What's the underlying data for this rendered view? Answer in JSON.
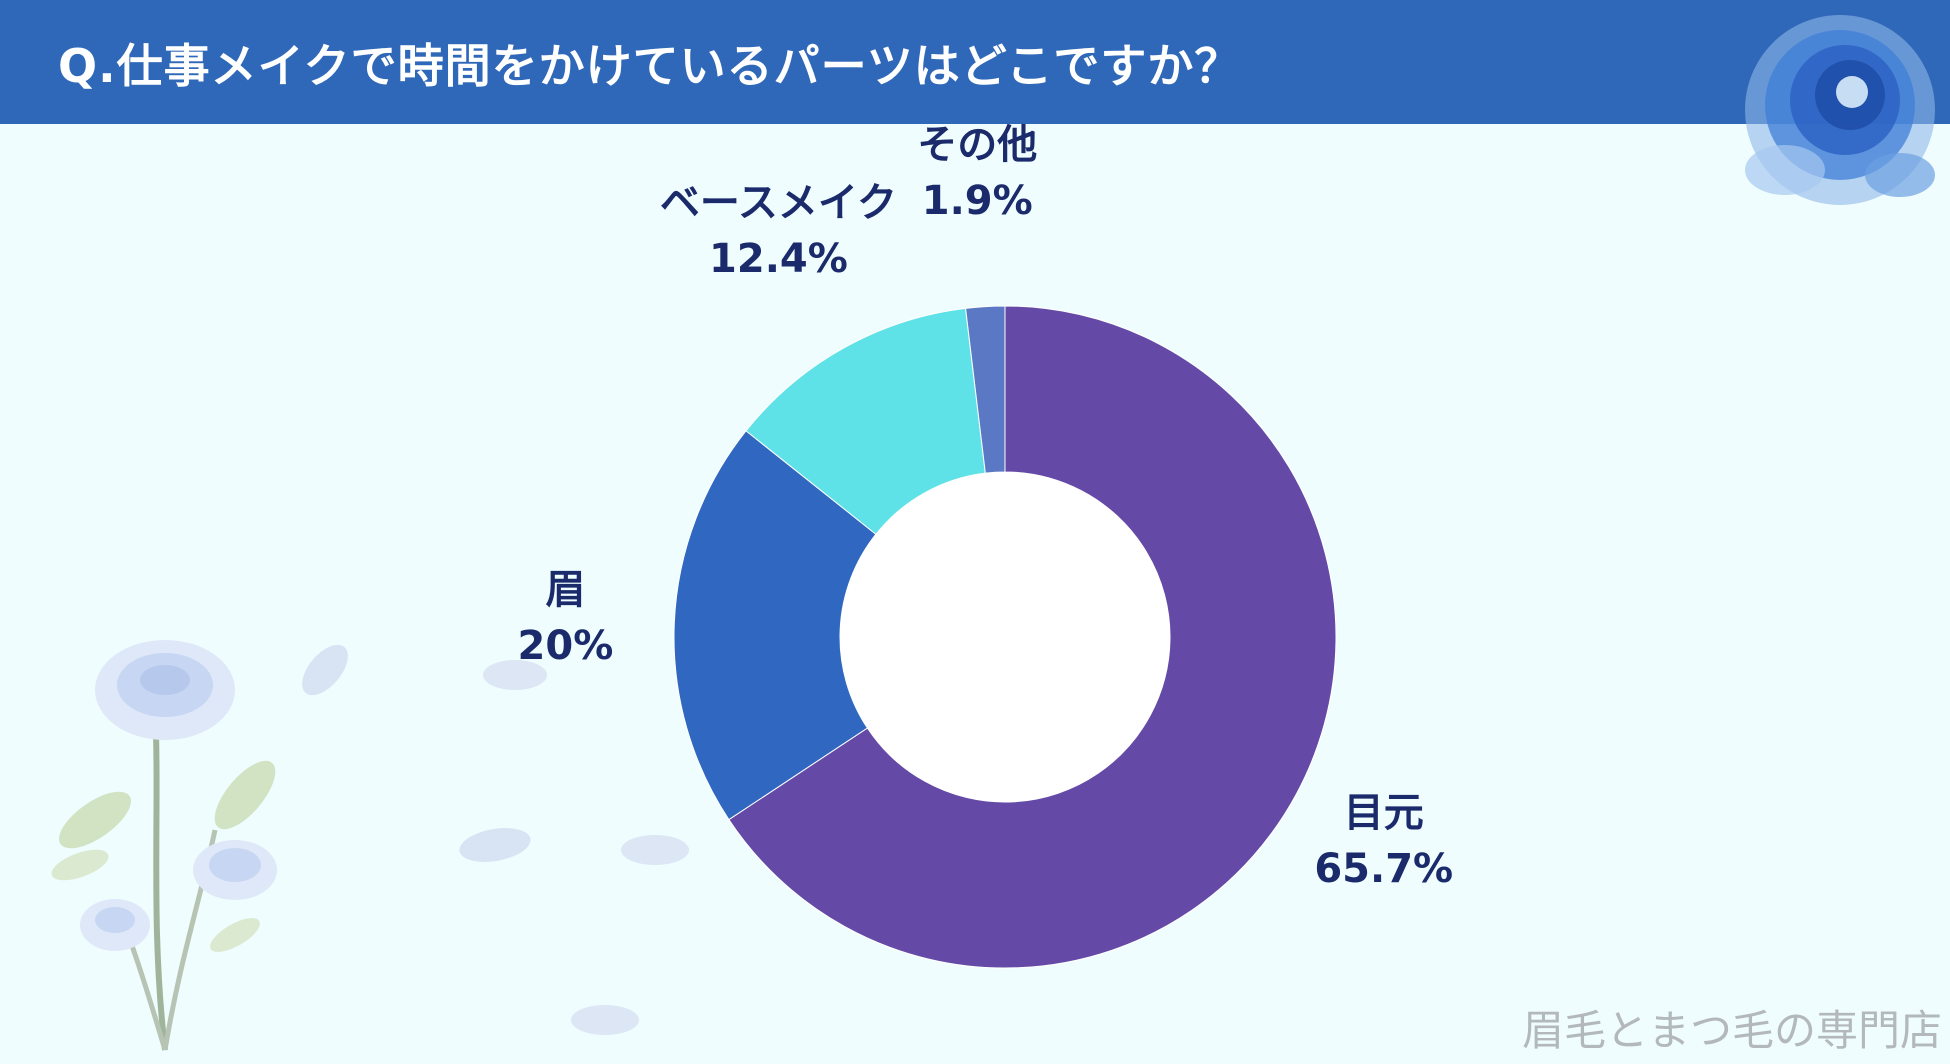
{
  "header": {
    "title": "Q.仕事メイクで時間をかけているパーツはどこですか？"
  },
  "chart_data": {
    "type": "pie",
    "donut": true,
    "categories": [
      "目元",
      "眉",
      "ベースメイク",
      "その他"
    ],
    "values": [
      65.7,
      20,
      12.4,
      1.9
    ],
    "value_labels": [
      "65.7%",
      "20%",
      "12.4%",
      "1.9%"
    ],
    "colors": [
      "#6449a6",
      "#2f67c1",
      "#5fe2e7",
      "#5a78c4"
    ],
    "legend": "none"
  },
  "watermark": "眉毛とまつ毛の専門店"
}
